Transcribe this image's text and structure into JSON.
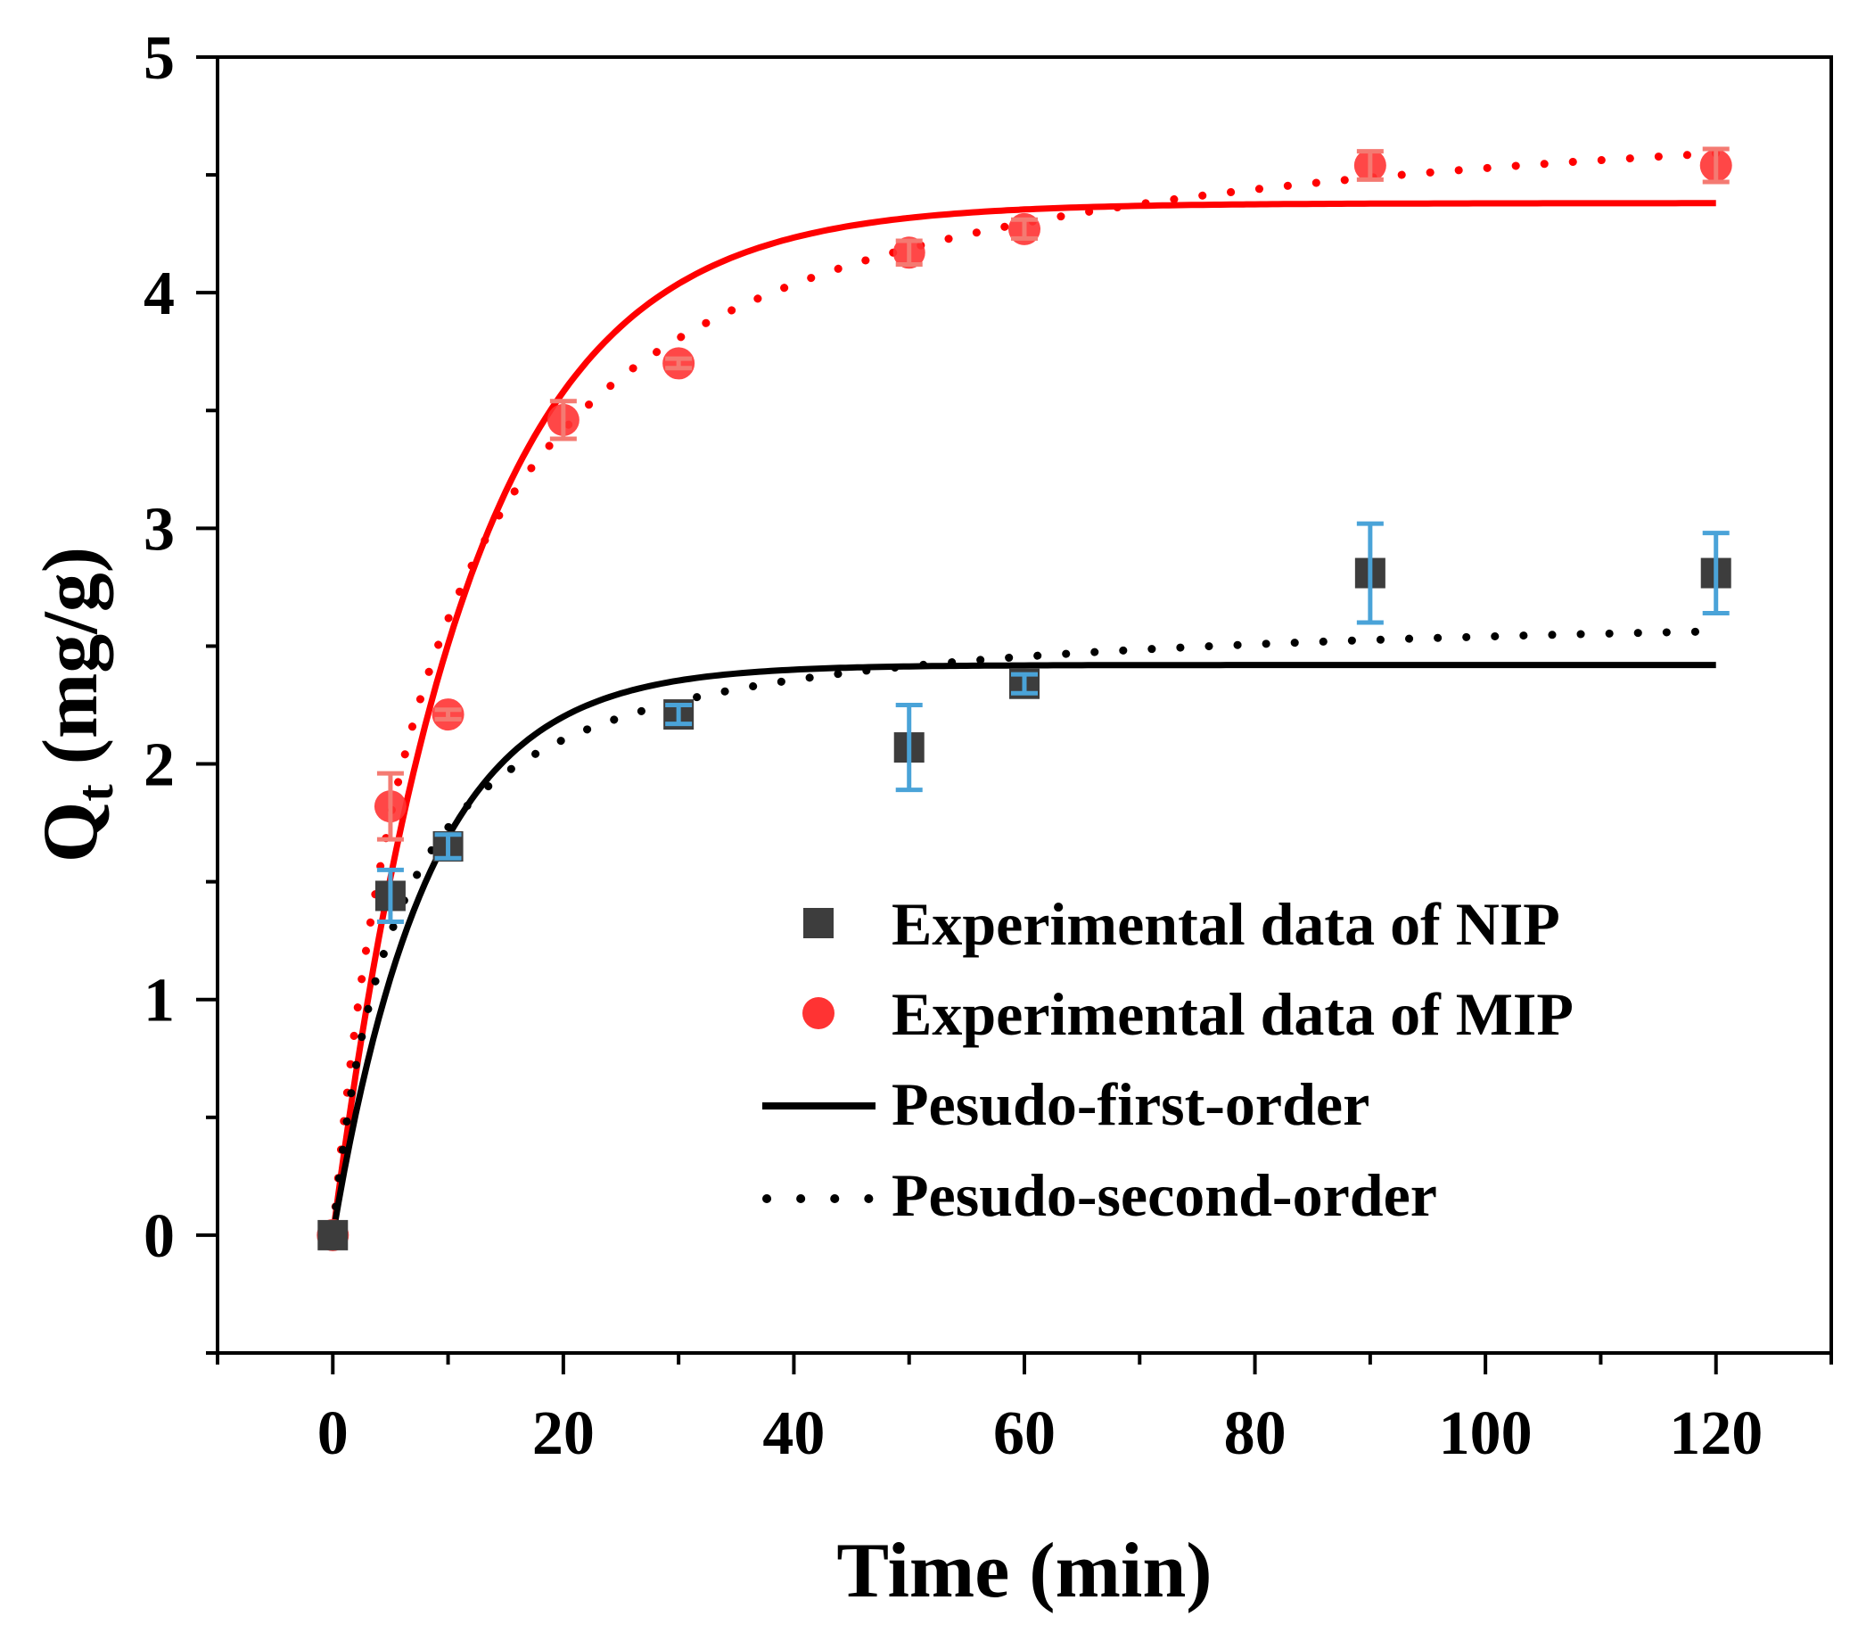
{
  "chart_data": {
    "type": "scatter",
    "title": "",
    "xlabel": "Time (min)",
    "ylabel_main": "Q",
    "ylabel_sub": "t",
    "ylabel_unit": " (mg/g)",
    "xlim": [
      -10,
      130
    ],
    "ylim": [
      -0.5,
      5
    ],
    "xticks": [
      0,
      20,
      40,
      60,
      80,
      100,
      120
    ],
    "xtick_labels": [
      "0",
      "20",
      "40",
      "60",
      "80",
      "100",
      "120"
    ],
    "yticks": [
      0,
      1,
      2,
      3,
      4,
      5
    ],
    "ytick_labels": [
      "0",
      "1",
      "2",
      "3",
      "4",
      "5"
    ],
    "grid": false,
    "legend_position": "bottom-right",
    "series": [
      {
        "name": "Experimental data of NIP",
        "kind": "points",
        "marker": "square",
        "color": "#3d3d3d",
        "errorbar_color": "#4aa3d8",
        "x": [
          0,
          5,
          10,
          30,
          50,
          60,
          90,
          120
        ],
        "y": [
          0,
          1.44,
          1.65,
          2.21,
          2.07,
          2.34,
          2.81,
          2.81
        ],
        "err": [
          0,
          0.11,
          0.05,
          0.04,
          0.18,
          0.04,
          0.21,
          0.17
        ]
      },
      {
        "name": "Experimental data of MIP",
        "kind": "points",
        "marker": "circle",
        "color": "#ff3333",
        "errorbar_color": "#f47a72",
        "x": [
          0,
          5,
          10,
          20,
          30,
          50,
          60,
          90,
          120
        ],
        "y": [
          0,
          1.82,
          2.21,
          3.46,
          3.7,
          4.17,
          4.27,
          4.54,
          4.54
        ],
        "err": [
          0,
          0.14,
          0.02,
          0.08,
          0.02,
          0.05,
          0.04,
          0.06,
          0.07
        ]
      },
      {
        "name": "Pesudo-first-order",
        "kind": "line",
        "style": "solid",
        "curves": [
          {
            "color": "#ff0000",
            "qe": 4.38,
            "k1": 0.085
          },
          {
            "color": "#000000",
            "qe": 2.42,
            "k1": 0.12
          }
        ]
      },
      {
        "name": "Pesudo-second-order",
        "kind": "line",
        "style": "dotted",
        "curves": [
          {
            "color": "#ff0000",
            "qe": 4.93,
            "k2": 0.0229
          },
          {
            "color": "#000000",
            "qe": 2.68,
            "k2": 0.068
          }
        ]
      }
    ],
    "legend": [
      {
        "label": "Experimental data of NIP",
        "symbol": "square",
        "color": "#3d3d3d"
      },
      {
        "label": "Experimental data of MIP",
        "symbol": "circle",
        "color": "#ff3333"
      },
      {
        "label": "Pesudo-first-order",
        "symbol": "solid-line",
        "color": "#000000"
      },
      {
        "label": "Pesudo-second-order",
        "symbol": "dotted-line",
        "color": "#000000"
      }
    ]
  }
}
